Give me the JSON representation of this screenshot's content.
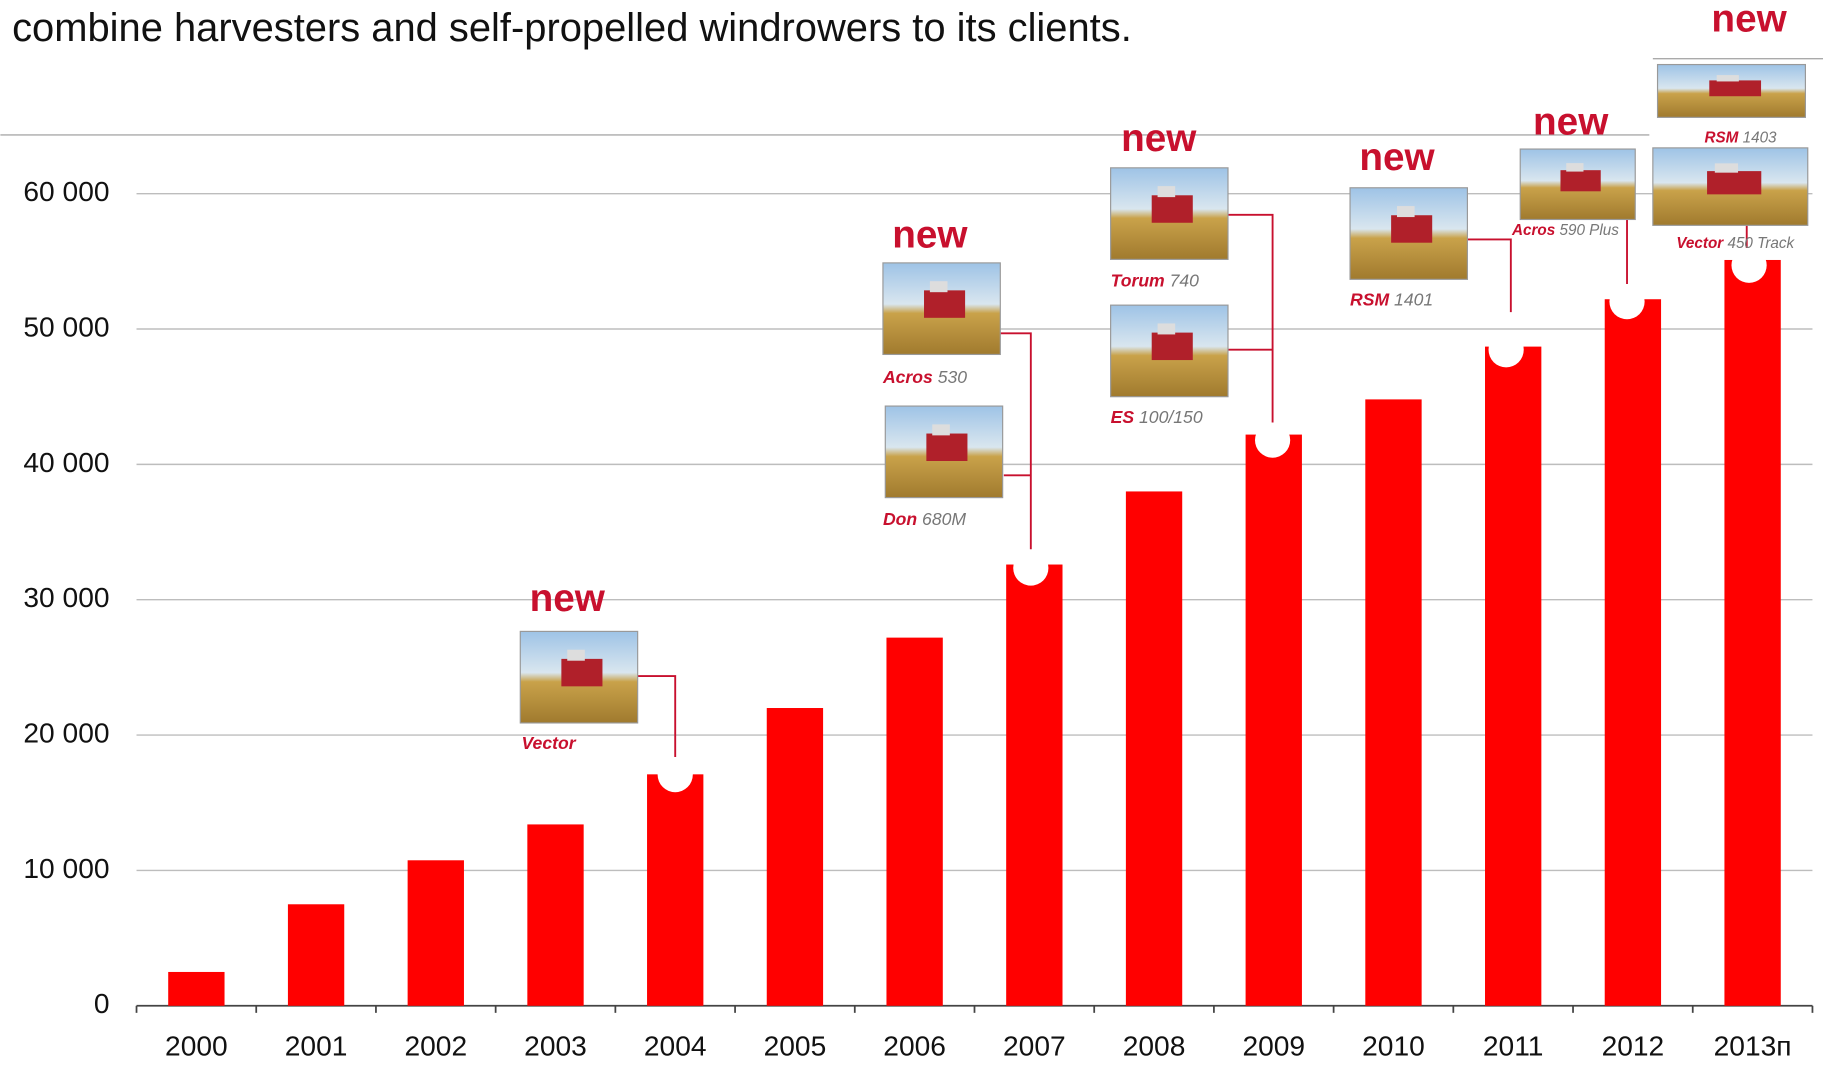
{
  "header": {
    "title": "combine harvesters and self-propelled windrowers to its clients."
  },
  "chart_data": {
    "type": "bar",
    "categories": [
      "2000",
      "2001",
      "2002",
      "2003",
      "2004",
      "2005",
      "2006",
      "2007",
      "2008",
      "2009",
      "2010",
      "2011",
      "2012",
      "2013п"
    ],
    "values": [
      2500,
      7500,
      10750,
      13400,
      17100,
      22000,
      27200,
      32600,
      38000,
      42200,
      44800,
      48700,
      52200,
      55100
    ],
    "color": "#ff0000",
    "ylim": [
      0,
      60000
    ],
    "yticks": [
      0,
      {
        "value": 10000,
        "label": "10 000"
      },
      {
        "value": 20000,
        "label": "20 000"
      },
      {
        "value": 30000,
        "label": "30 000"
      },
      {
        "value": 40000,
        "label": "40 000"
      },
      {
        "value": 50000,
        "label": "50 000"
      },
      {
        "value": 60000,
        "label": "60 000"
      }
    ],
    "grid": true,
    "annotations": [
      {
        "label": "new",
        "products": [
          {
            "brand": "Vector"
          }
        ]
      },
      {
        "label": "new",
        "products": [
          {
            "brand": "Acros",
            "model": "530"
          },
          {
            "brand": "Don",
            "model": "680M"
          }
        ]
      },
      {
        "label": "new",
        "products": [
          {
            "brand": "Torum",
            "model": "740"
          },
          {
            "brand": "ES",
            "model": "100/150"
          }
        ]
      },
      {
        "label": "new",
        "products": [
          {
            "brand": "RSM",
            "model": "1401"
          }
        ]
      },
      {
        "label": "new",
        "products": [
          {
            "brand": "Acros",
            "model": "590 Plus"
          }
        ]
      },
      {
        "label": "new",
        "products": [
          {
            "brand": "RSM",
            "model": "1403"
          },
          {
            "brand": "Vector",
            "model": "450 Track"
          }
        ]
      }
    ]
  }
}
